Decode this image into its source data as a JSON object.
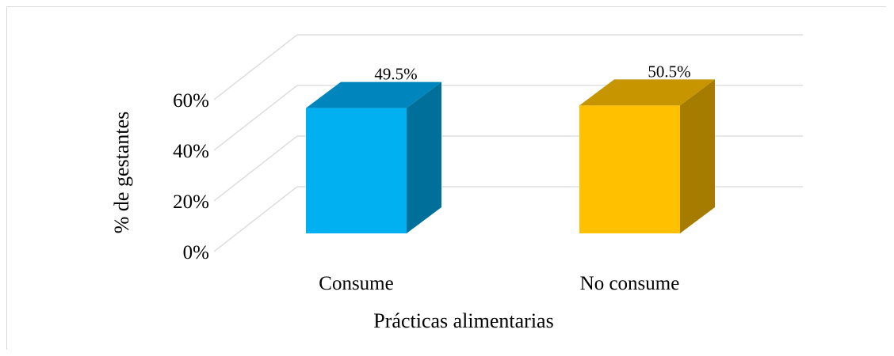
{
  "chart_data": {
    "type": "bar",
    "categories": [
      "Consume",
      "No consume"
    ],
    "series": [
      {
        "values": [
          49.5,
          50.5
        ]
      }
    ],
    "data_labels": [
      "49.5%",
      "50.5%"
    ],
    "ytick_labels": [
      "0%",
      "20%",
      "40%",
      "60%"
    ],
    "yticks": [
      0,
      20,
      40,
      60
    ],
    "ylim": [
      0,
      60
    ],
    "xlabel": "Prácticas alimentarias",
    "ylabel": "% de  gestantes",
    "colors": {
      "bars_front": [
        "#00b0f0",
        "#ffc000"
      ],
      "bars_side": [
        "#006f9a",
        "#a67c00"
      ],
      "bars_top": [
        "#0086bc",
        "#c69500"
      ],
      "grid": "#d9d9d9"
    },
    "style": "3d-column",
    "grid": true,
    "legend": "none"
  }
}
